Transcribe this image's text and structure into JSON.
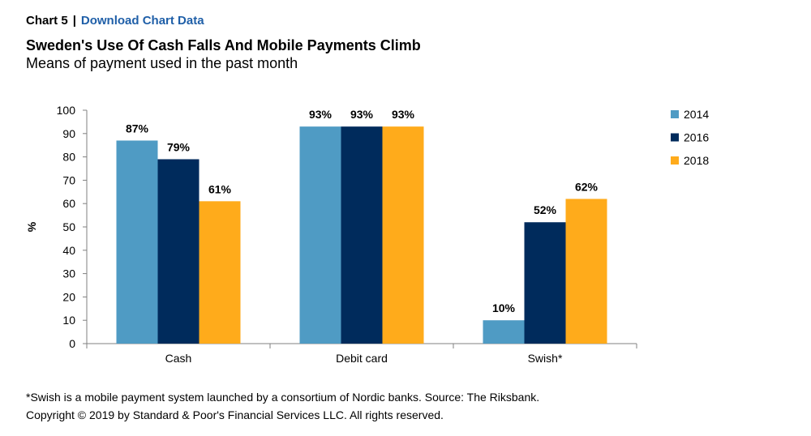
{
  "header": {
    "chart_number": "Chart 5",
    "separator": "|",
    "download_link": "Download Chart Data"
  },
  "footer": {
    "footnote": "*Swish is a mobile payment system launched by a consortium of Nordic banks. Source: The Riksbank.",
    "copyright": "Copyright © 2019 by Standard & Poor's Financial Services LLC. All rights reserved."
  },
  "chart_data": {
    "type": "bar",
    "title": "Sweden's Use Of Cash Falls And Mobile Payments Climb",
    "subtitle": "Means of payment used in the past month",
    "xlabel": "",
    "ylabel": "%",
    "ylim": [
      0,
      100
    ],
    "yticks": [
      0,
      10,
      20,
      30,
      40,
      50,
      60,
      70,
      80,
      90,
      100
    ],
    "grid": false,
    "legend_position": "right",
    "categories": [
      "Cash",
      "Debit card",
      "Swish*"
    ],
    "series": [
      {
        "name": "2014",
        "color": "#4f9bc4",
        "values": [
          87,
          93,
          10
        ],
        "labels": [
          "87%",
          "93%",
          "10%"
        ]
      },
      {
        "name": "2016",
        "color": "#002b5c",
        "values": [
          79,
          93,
          52
        ],
        "labels": [
          "79%",
          "93%",
          "52%"
        ]
      },
      {
        "name": "2018",
        "color": "#ffab1b",
        "values": [
          61,
          93,
          62
        ],
        "labels": [
          "61%",
          "93%",
          "62%"
        ]
      }
    ]
  }
}
